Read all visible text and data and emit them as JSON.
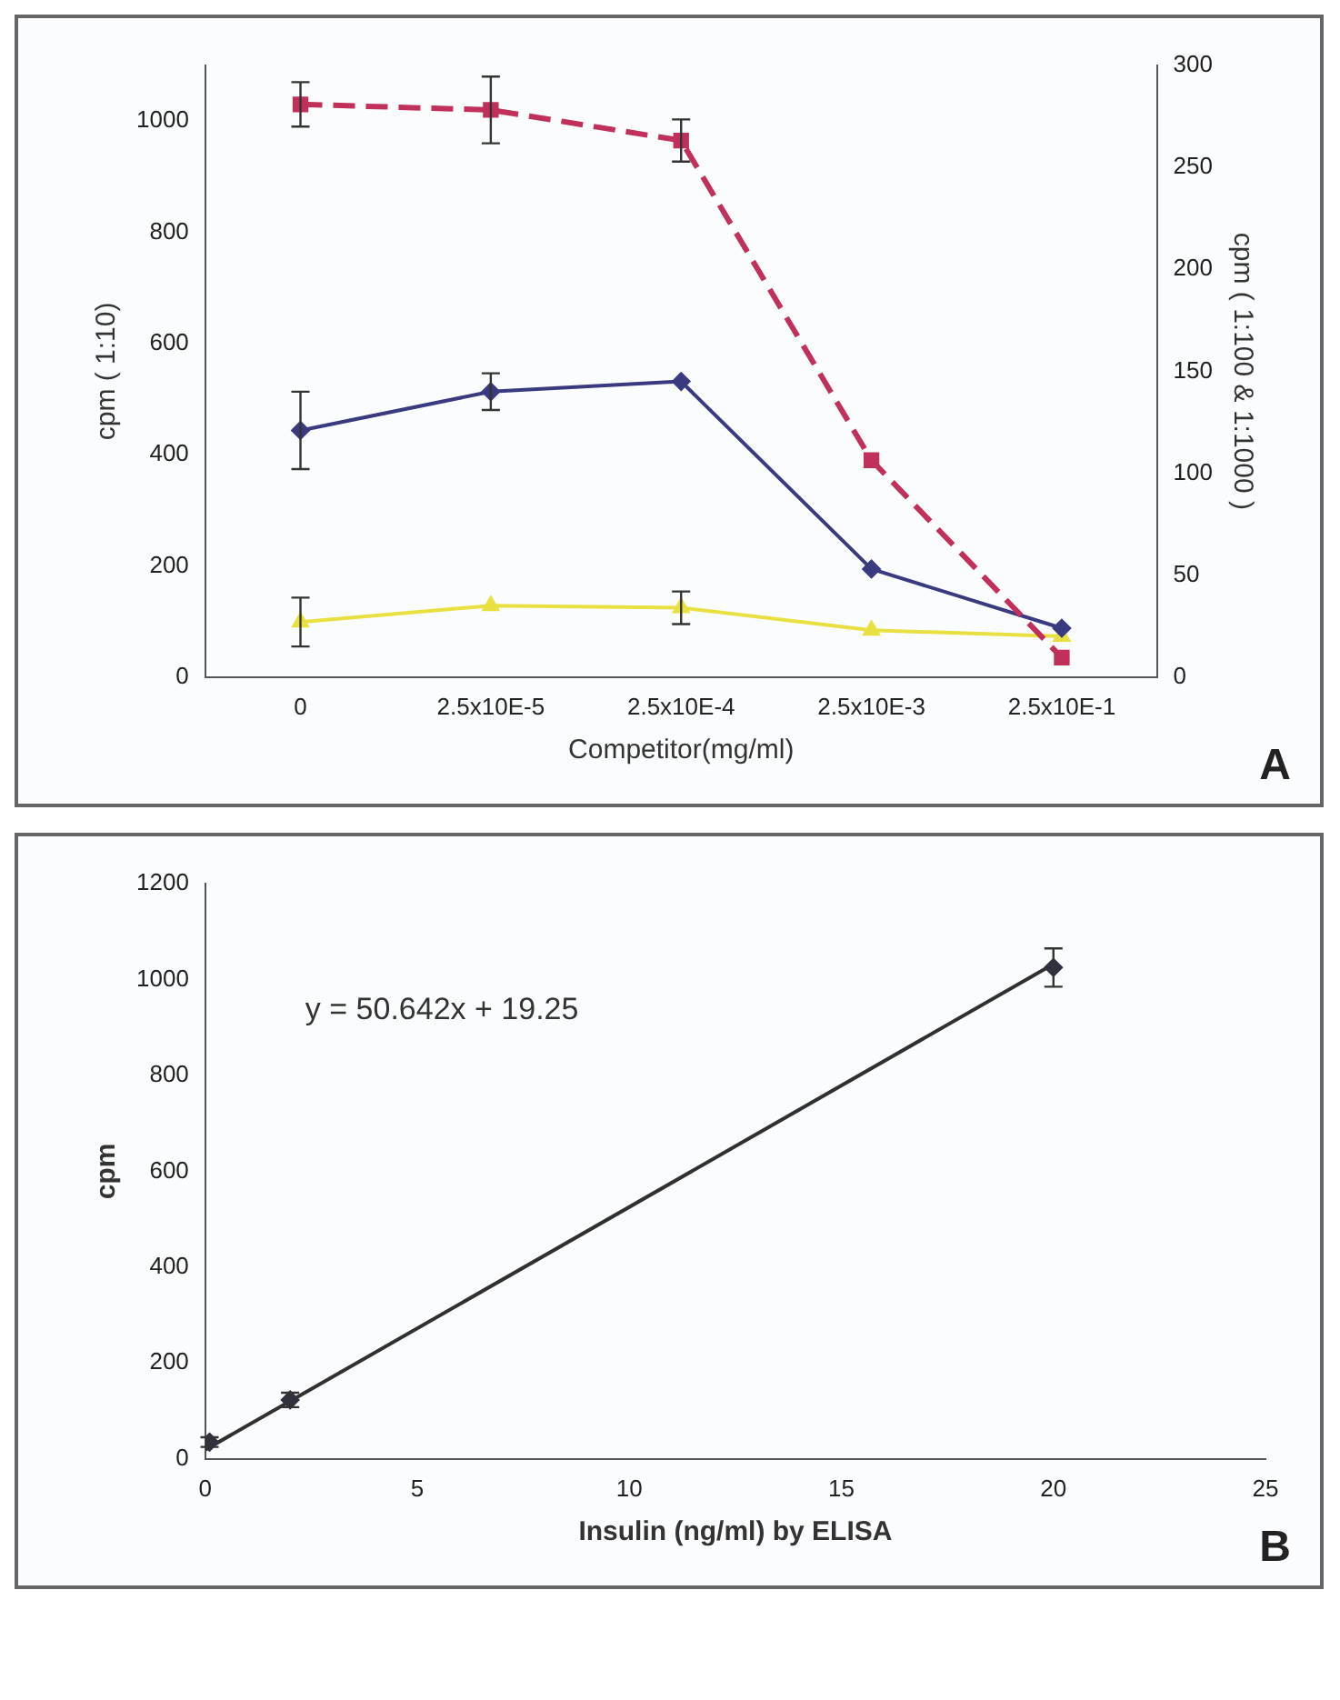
{
  "chart_data": [
    {
      "type": "line",
      "categories": [
        "0",
        "2.5x10E-5",
        "2.5x10E-4",
        "2.5x10E-3",
        "2.5x10E-1"
      ],
      "series": [
        {
          "color": "#c0305a",
          "values": [
            1030,
            1020,
            965,
            390,
            35
          ],
          "errors": [
            40,
            60,
            38,
            null,
            null
          ],
          "marker": "square",
          "line_style": "dashed"
        },
        {
          "color": "#3a3a80",
          "values": [
            121,
            140,
            145,
            53,
            24
          ],
          "errors": [
            19,
            9,
            null,
            null,
            null
          ],
          "axis": "y2",
          "marker": "diamond",
          "line_style": "solid"
        },
        {
          "color": "#e8e040",
          "values": [
            27,
            35,
            34,
            23,
            20
          ],
          "errors": [
            12,
            null,
            8,
            null,
            null
          ],
          "axis": "y2",
          "marker": "triangle",
          "line_style": "solid"
        }
      ],
      "xlabel": "Competitor(mg/ml)",
      "ylabel": "cpm ( 1:10)",
      "y2label": "cpm ( 1:100 & 1:1000 )",
      "ylim": [
        0,
        1100
      ],
      "yticks": [
        0,
        200,
        400,
        600,
        800,
        1000
      ],
      "y2lim": [
        0,
        300
      ],
      "y2ticks": [
        0,
        50,
        100,
        150,
        200,
        250,
        300
      ],
      "grid": false,
      "legend": false,
      "annotations": [
        "A"
      ]
    },
    {
      "type": "scatter",
      "x": [
        0.1,
        2,
        20
      ],
      "series": [
        {
          "color": "#303040",
          "values": [
            35,
            123,
            1025
          ],
          "errors": [
            10,
            15,
            40
          ],
          "marker": "diamond"
        },
        {
          "type": "line",
          "color": "#303030",
          "x": [
            0,
            20
          ],
          "values": [
            19.25,
            1032
          ],
          "marker": "none",
          "line_style": "solid"
        }
      ],
      "xlabel": "Insulin (ng/ml) by ELISA",
      "ylabel": "cpm",
      "xlim": [
        0,
        25
      ],
      "xticks": [
        0,
        5,
        10,
        15,
        20,
        25
      ],
      "ylim": [
        0,
        1200
      ],
      "yticks": [
        0,
        200,
        400,
        600,
        800,
        1000,
        1200
      ],
      "grid": false,
      "legend": false,
      "annotations": [
        "y = 50.642x + 19.25",
        "B"
      ]
    }
  ]
}
